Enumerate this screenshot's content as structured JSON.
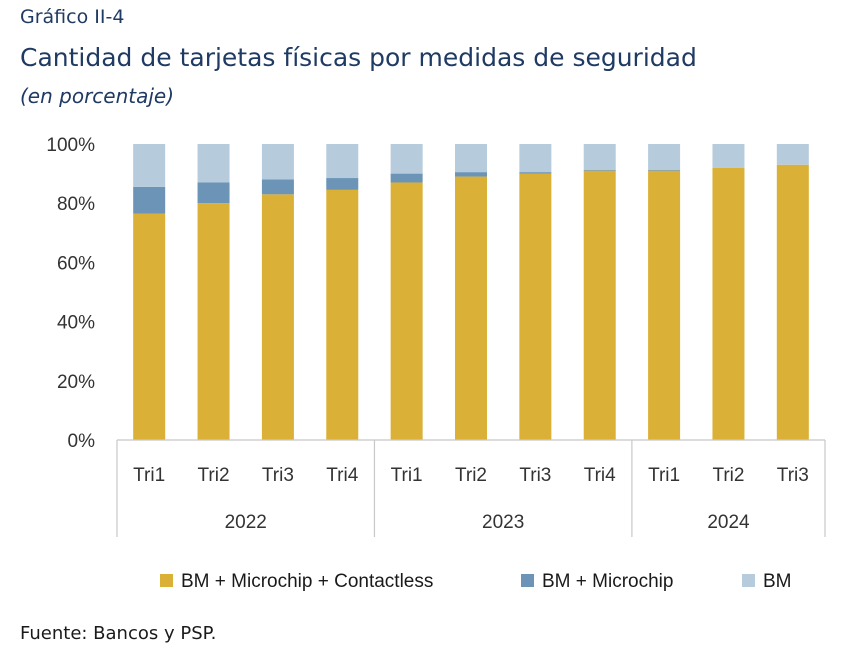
{
  "header": {
    "label": "Gráfico II-4",
    "title": "Cantidad de tarjetas físicas por medidas de seguridad",
    "subtitle": "(en porcentaje)"
  },
  "source": "Fuente: Bancos y PSP.",
  "chart_data": {
    "type": "bar",
    "stacked": true,
    "categories": [
      "Tri1",
      "Tri2",
      "Tri3",
      "Tri4",
      "Tri1",
      "Tri2",
      "Tri3",
      "Tri4",
      "Tri1",
      "Tri2",
      "Tri3"
    ],
    "groups": [
      {
        "label": "2022",
        "count": 4
      },
      {
        "label": "2023",
        "count": 4
      },
      {
        "label": "2024",
        "count": 3
      }
    ],
    "series": [
      {
        "name": "BM + Microchip + Contactless",
        "color": "#dbb036",
        "values": [
          76.5,
          80,
          83,
          84.5,
          87,
          89,
          90,
          91,
          91,
          92,
          93
        ]
      },
      {
        "name": "BM + Microchip",
        "color": "#6b94b6",
        "values": [
          9,
          7,
          5,
          4,
          3,
          1.5,
          0.5,
          0.3,
          0.3,
          0,
          0
        ]
      },
      {
        "name": "BM",
        "color": "#b6cbdc",
        "values": [
          14.5,
          13,
          12,
          11.5,
          10,
          9.5,
          9.5,
          8.7,
          8.7,
          8,
          7
        ]
      }
    ],
    "yticks": [
      "0%",
      "20%",
      "40%",
      "60%",
      "80%",
      "100%"
    ],
    "ylim": [
      0,
      100
    ],
    "legend_position": "bottom",
    "grid": false
  }
}
